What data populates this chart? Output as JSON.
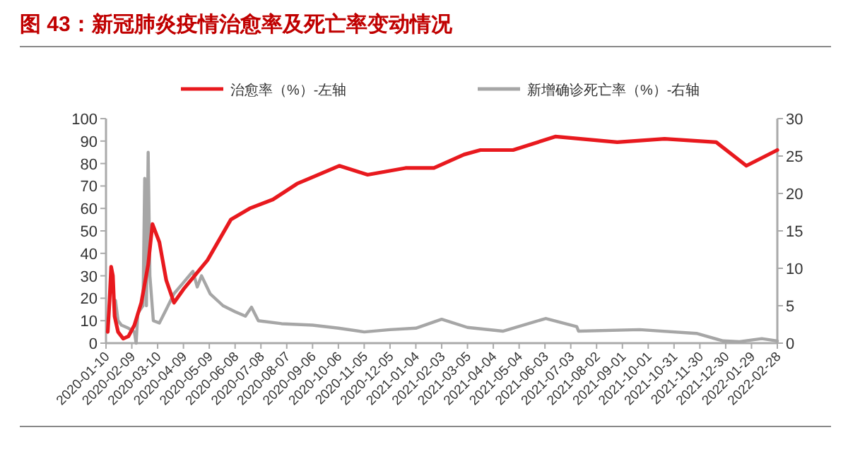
{
  "chart_data": {
    "type": "line",
    "title": "图 43：新冠肺炎疫情治愈率及死亡率变动情况",
    "legend": "top",
    "grid": false,
    "xlim": [
      "2020-01-10",
      "2022-02-28"
    ],
    "xticks": [
      "2020-01-10",
      "2020-02-09",
      "2020-03-10",
      "2020-04-09",
      "2020-05-09",
      "2020-06-08",
      "2020-07-08",
      "2020-08-07",
      "2020-09-06",
      "2020-10-06",
      "2020-11-05",
      "2020-12-05",
      "2021-01-04",
      "2021-02-03",
      "2021-03-05",
      "2021-04-04",
      "2021-05-04",
      "2021-06-03",
      "2021-07-03",
      "2021-08-02",
      "2021-09-01",
      "2021-10-01",
      "2021-10-31",
      "2021-11-30",
      "2021-12-30",
      "2022-01-29",
      "2022-02-28"
    ],
    "ylim": [
      0,
      100
    ],
    "yticks": [
      0,
      10,
      20,
      30,
      40,
      50,
      60,
      70,
      80,
      90,
      100
    ],
    "y2lim": [
      0,
      30
    ],
    "y2ticks": [
      0,
      5,
      10,
      15,
      20,
      25,
      30
    ],
    "series": [
      {
        "name": "治愈率（%）-左轴",
        "color": "#e8191e",
        "x": [
          "2020-01-12",
          "2020-01-14",
          "2020-01-16",
          "2020-01-18",
          "2020-01-20",
          "2020-01-24",
          "2020-01-30",
          "2020-02-05",
          "2020-02-12",
          "2020-02-20",
          "2020-02-28",
          "2020-03-04",
          "2020-03-12",
          "2020-03-20",
          "2020-03-29",
          "2020-04-09",
          "2020-05-07",
          "2020-06-03",
          "2020-06-25",
          "2020-07-22",
          "2020-08-19",
          "2020-10-07",
          "2020-11-09",
          "2020-12-23",
          "2021-01-25",
          "2021-03-01",
          "2021-03-20",
          "2021-04-27",
          "2021-06-15",
          "2021-08-26",
          "2021-10-20",
          "2021-12-19",
          "2022-01-23",
          "2022-02-28"
        ],
        "values": [
          5,
          18,
          34,
          30,
          12,
          5,
          2,
          3,
          8,
          18,
          35,
          53,
          45,
          28,
          18,
          24,
          37,
          55,
          60,
          64,
          71,
          79,
          75,
          78,
          78,
          84,
          86,
          86,
          92,
          89.5,
          91,
          89.5,
          79,
          86
        ]
      },
      {
        "name": "新增确诊死亡率（%）-右轴",
        "color": "#a6a6a6",
        "axis": "y2",
        "x": [
          "2020-01-21",
          "2020-01-24",
          "2020-01-28",
          "2020-02-05",
          "2020-02-12",
          "2020-02-14",
          "2020-02-16",
          "2020-02-22",
          "2020-02-24",
          "2020-02-26",
          "2020-02-28",
          "2020-03-01",
          "2020-03-05",
          "2020-03-12",
          "2020-03-20",
          "2020-03-29",
          "2020-04-09",
          "2020-04-20",
          "2020-04-25",
          "2020-04-30",
          "2020-05-10",
          "2020-05-25",
          "2020-06-08",
          "2020-06-20",
          "2020-06-27",
          "2020-07-05",
          "2020-08-01",
          "2020-09-06",
          "2020-10-06",
          "2020-11-05",
          "2020-12-05",
          "2021-01-04",
          "2021-02-03",
          "2021-03-05",
          "2021-04-15",
          "2021-06-04",
          "2021-07-10",
          "2021-07-12",
          "2021-09-21",
          "2021-11-26",
          "2021-12-27",
          "2022-01-15",
          "2022-02-10",
          "2022-02-28"
        ],
        "values": [
          5.7,
          3,
          2.4,
          2,
          1.5,
          0,
          4,
          5,
          22,
          5,
          25.5,
          9,
          3,
          2.7,
          4.5,
          6.6,
          8.1,
          9.6,
          7.5,
          9,
          6.6,
          5,
          4.2,
          3.6,
          4.8,
          3,
          2.6,
          2.4,
          2,
          1.5,
          1.8,
          2,
          3.2,
          2.1,
          1.6,
          3.3,
          2.2,
          1.6,
          1.8,
          1.3,
          0.3,
          0.2,
          0.6,
          0.3
        ]
      }
    ]
  }
}
